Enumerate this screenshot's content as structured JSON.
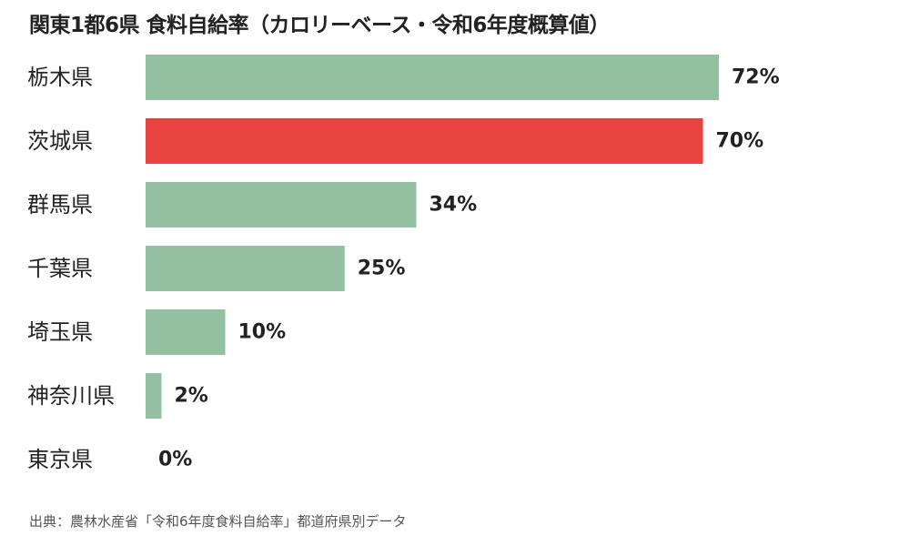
{
  "colors": {
    "default_bar": "#93c0a0",
    "highlight_bar": "#e84341"
  },
  "chart_data": {
    "type": "bar",
    "orientation": "horizontal",
    "title": "関東1都6県 食料自給率（カロリーベース・令和6年度概算値）",
    "categories": [
      "栃木県",
      "茨城県",
      "群馬県",
      "千葉県",
      "埼玉県",
      "神奈川県",
      "東京県"
    ],
    "values": [
      72,
      70,
      34,
      25,
      10,
      2,
      0
    ],
    "value_labels": [
      "72%",
      "70%",
      "34%",
      "25%",
      "10%",
      "2%",
      "0%"
    ],
    "highlight": "茨城県",
    "xlim": [
      0,
      72
    ],
    "grid": false,
    "source": "出典：農林水産省「令和6年度食料自給率」都道府県別データ"
  }
}
